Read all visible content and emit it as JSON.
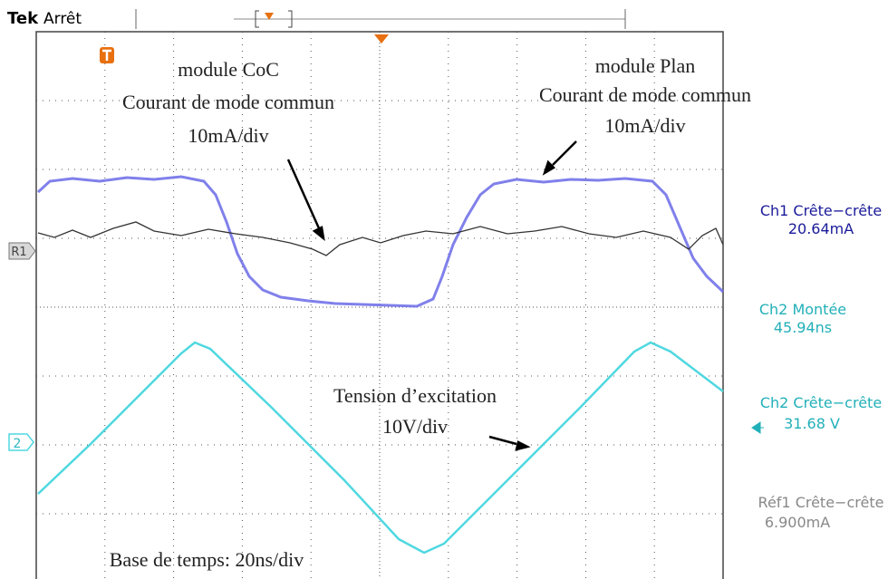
{
  "header": {
    "brand": "Tek",
    "status": "Arrêt"
  },
  "markers": {
    "reference": "R1",
    "channel": "2"
  },
  "annotations": [
    {
      "lines": [
        "module CoC",
        "Courant de mode commun",
        "10mA/div"
      ]
    },
    {
      "lines": [
        "module Plan",
        "Courant de mode commun",
        "10mA/div"
      ]
    },
    {
      "lines": [
        "Tension d’excitation",
        "10V/div"
      ]
    },
    {
      "lines": [
        "Base de temps: 20ns/div"
      ]
    }
  ],
  "measurements": [
    {
      "label": "Ch1 Crête−crête",
      "value": "20.64mA"
    },
    {
      "label": "Ch2 Montée",
      "value": "45.94ns"
    },
    {
      "label": "Ch2 Crête−crête",
      "value": "31.68 V"
    },
    {
      "label": "Réf1 Crête−crête",
      "value": "6.900mA"
    }
  ]
}
